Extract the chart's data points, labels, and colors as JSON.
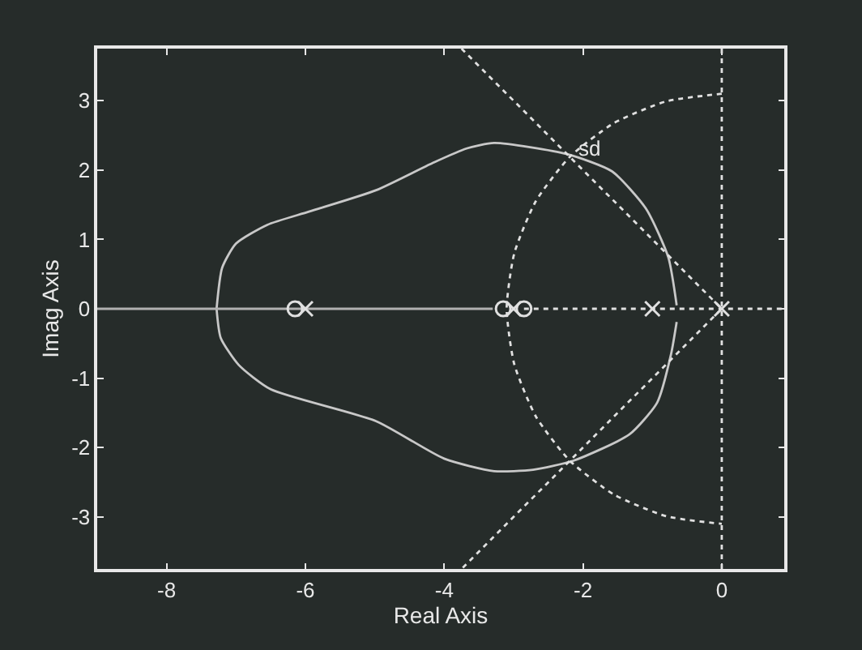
{
  "chart_data": {
    "type": "line",
    "xlabel": "Real Axis",
    "ylabel": "Imag Axis",
    "xlim": [
      -9,
      0.9
    ],
    "ylim": [
      -3.75,
      3.75
    ],
    "xticks": [
      -8,
      -6,
      -4,
      -2,
      0
    ],
    "yticks": [
      -3,
      -2,
      -1,
      0,
      1,
      2,
      3
    ],
    "grid": false,
    "series": [
      {
        "color": "#c8c8c8",
        "line_style": "solid",
        "marker": "none",
        "x": [
          -7.28,
          -7.2,
          -7.0,
          -6.55,
          -5.95,
          -4.98,
          -4.17,
          -3.68,
          -3.28,
          -2.23,
          -1.58,
          -1.09,
          -0.77,
          -0.65
        ],
        "values": [
          0,
          0.59,
          0.94,
          1.21,
          1.4,
          1.71,
          2.1,
          2.31,
          2.39,
          2.23,
          1.98,
          1.44,
          0.74,
          0.05
        ]
      },
      {
        "color": "#c8c8c8",
        "line_style": "solid",
        "marker": "none",
        "x": [
          -7.28,
          -7.22,
          -6.96,
          -6.5,
          -4.98,
          -4.0,
          -3.28,
          -2.72,
          -2.14,
          -1.33,
          -0.93,
          -0.73,
          -0.65
        ],
        "values": [
          0,
          -0.42,
          -0.81,
          -1.16,
          -1.62,
          -2.16,
          -2.34,
          -2.32,
          -2.19,
          -1.81,
          -1.35,
          -0.65,
          -0.19
        ]
      },
      {
        "color": "#b0b0b0",
        "line_style": "solid",
        "marker": "none",
        "x": [
          -9,
          -3.3
        ],
        "values": [
          0,
          0
        ]
      },
      {
        "color": "#e0e0e0",
        "line_style": "dotted",
        "marker": "none",
        "x": [
          -2.85,
          0.9
        ],
        "values": [
          0,
          0
        ]
      },
      {
        "color": "#e0e0e0",
        "line_style": "dotted",
        "marker": "none",
        "x": [
          0,
          -0.8,
          -1.55,
          -2.19,
          -2.68,
          -2.99,
          -3.1,
          -2.99,
          -2.68,
          -2.19,
          -1.55,
          -0.8,
          0
        ],
        "values": [
          3.1,
          2.99,
          2.68,
          2.19,
          1.55,
          0.8,
          0,
          -0.8,
          -1.55,
          -2.19,
          -2.68,
          -2.99,
          -3.1
        ]
      },
      {
        "color": "#e0e0e0",
        "line_style": "dotted",
        "marker": "none",
        "x": [
          -3.75,
          0,
          -3.75
        ],
        "values": [
          3.75,
          0,
          -3.75
        ]
      },
      {
        "type": "scatter",
        "color": "#e0e0e0",
        "marker": "cross",
        "x": [
          -6,
          -3,
          -1,
          0
        ],
        "values": [
          0,
          0,
          0,
          0
        ]
      },
      {
        "type": "scatter",
        "color": "#e0e0e0",
        "marker": "circle",
        "x": [
          -6.15,
          -3.15,
          -2.85
        ],
        "values": [
          0,
          0,
          0
        ]
      }
    ],
    "ref_lines": [
      {
        "axis": "x",
        "value": 0,
        "line_style": "dotted",
        "color": "#e0e0e0"
      }
    ],
    "annotations": [
      {
        "text": "sd",
        "x": -2.23,
        "y": 2.23
      }
    ]
  }
}
